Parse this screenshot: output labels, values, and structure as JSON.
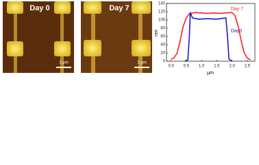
{
  "panels": [
    {
      "label": "Day 0",
      "scale": "1 μm"
    },
    {
      "label": "Day 7",
      "scale": "1 μm"
    }
  ],
  "chart_data": {
    "type": "line",
    "xlabel": "μm",
    "ylabel": "nm",
    "xlim": [
      -0.15,
      2.75
    ],
    "xticks": [
      {
        "value": 0,
        "label": "0.0"
      },
      0.5,
      {
        "value": 1,
        "label": "1.0"
      },
      1.5,
      {
        "value": 2,
        "label": "2.0"
      },
      2.5
    ],
    "ylim": [
      0,
      140
    ],
    "yticks": [
      0,
      20,
      40,
      60,
      80,
      100,
      120,
      140
    ],
    "series": [
      {
        "name": "Day 7",
        "color": "#ff2020",
        "x": [
          0,
          0.1,
          0.2,
          0.3,
          0.4,
          0.5,
          0.6,
          0.8,
          1.0,
          1.2,
          1.4,
          1.6,
          1.8,
          2.0,
          2.1,
          2.2,
          2.3,
          2.4,
          2.5,
          2.6
        ],
        "values": [
          5,
          8,
          20,
          50,
          85,
          105,
          115,
          118,
          117,
          116,
          117,
          116,
          117,
          118,
          110,
          85,
          50,
          20,
          8,
          3
        ]
      },
      {
        "name": "Day0",
        "color": "#1a1acc",
        "x": [
          0.45,
          0.55,
          0.6,
          0.63,
          0.7,
          0.9,
          1.2,
          1.5,
          1.7,
          1.8,
          1.85,
          1.9,
          2.0
        ],
        "values": [
          0,
          3,
          60,
          118,
          105,
          102,
          103,
          102,
          104,
          105,
          60,
          5,
          0
        ]
      }
    ]
  }
}
